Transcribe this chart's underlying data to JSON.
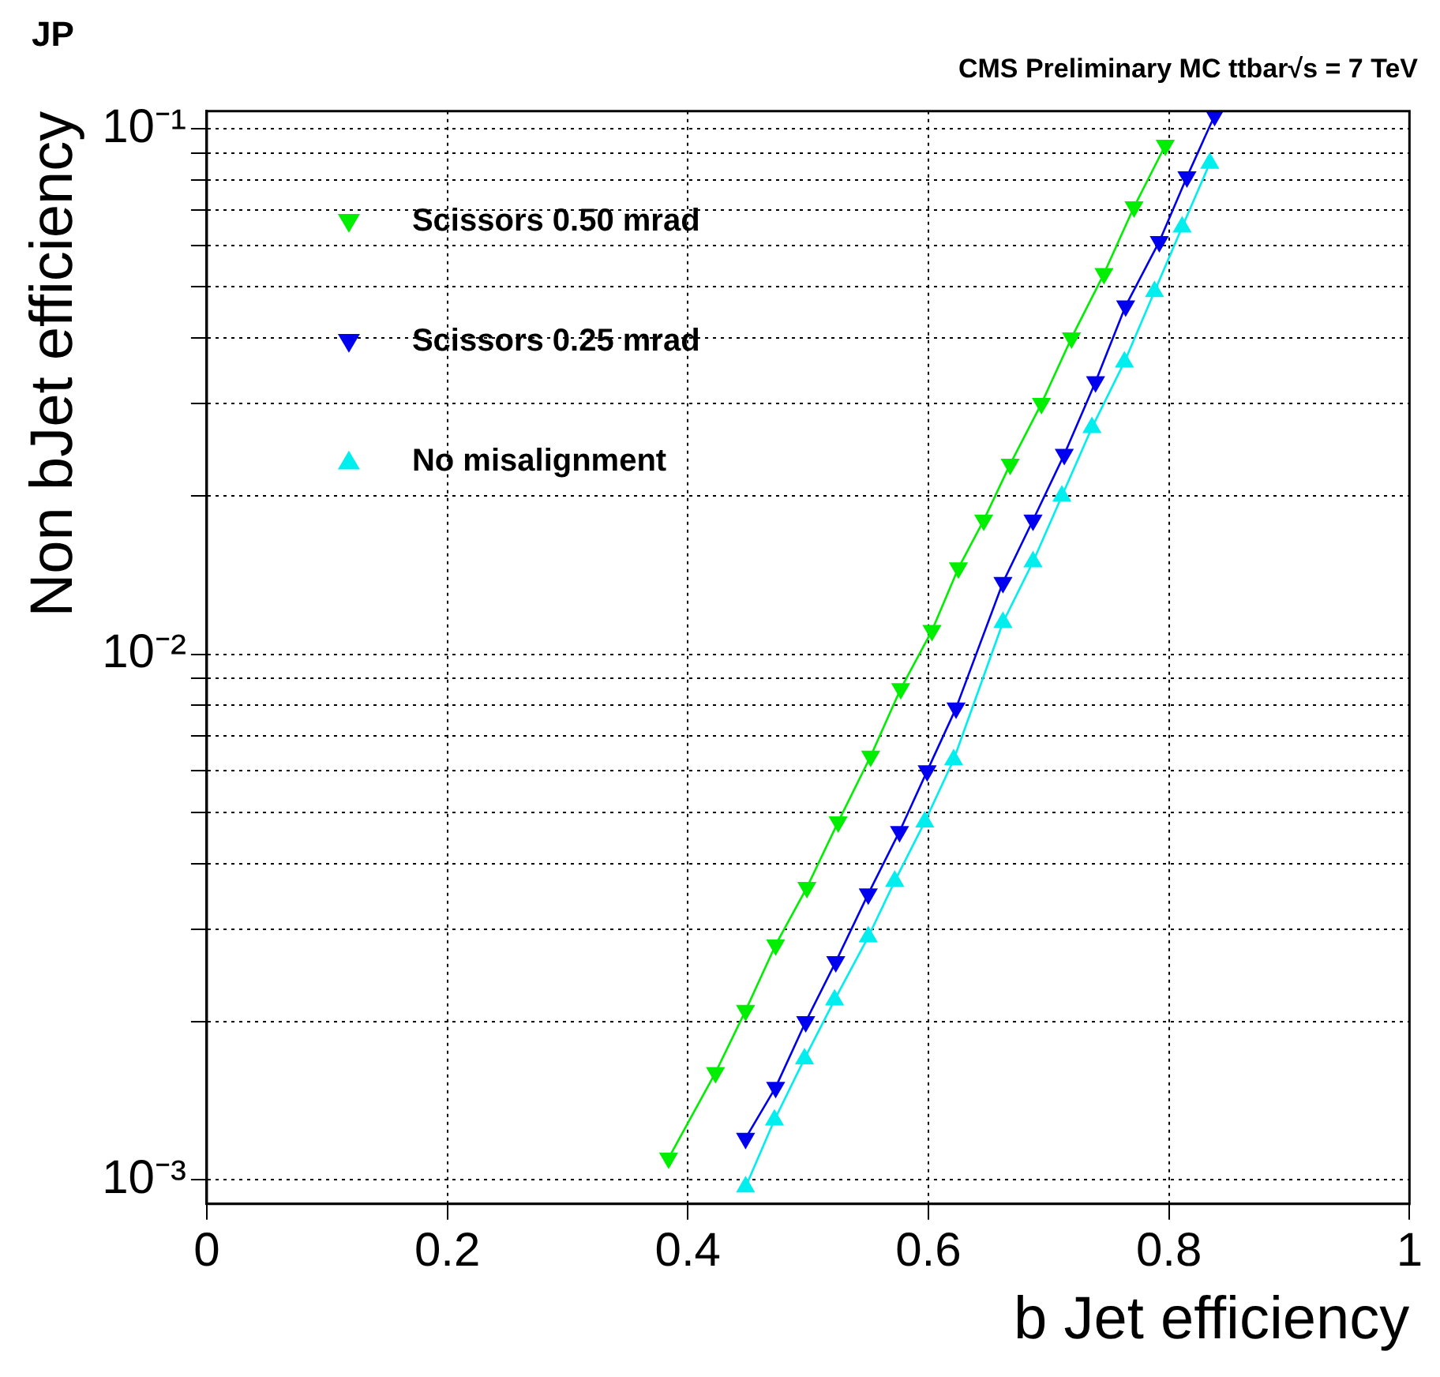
{
  "chart_data": {
    "type": "line",
    "title": "CMS Preliminary MC ttbar√s = 7 TeV",
    "xlabel": "b Jet efficiency",
    "ylabel": "Non bJet efficiency",
    "annotations": [
      "JP"
    ],
    "log": "y",
    "grid": true,
    "legend": "top left",
    "line_style": "solid",
    "xlim": [
      0,
      1
    ],
    "xticks": [
      0,
      0.2,
      0.4,
      0.6,
      0.8,
      1
    ],
    "ylim": [
      0.0009,
      0.108
    ],
    "yticks": [
      {
        "value": 0.001,
        "label": "10⁻³"
      },
      {
        "value": 0.002,
        "label": null
      },
      {
        "value": 0.003,
        "label": null
      },
      {
        "value": 0.004,
        "label": null
      },
      {
        "value": 0.005,
        "label": null
      },
      {
        "value": 0.006,
        "label": null
      },
      {
        "value": 0.007,
        "label": null
      },
      {
        "value": 0.008,
        "label": null
      },
      {
        "value": 0.009,
        "label": null
      },
      {
        "value": 0.01,
        "label": "10⁻²"
      },
      {
        "value": 0.02,
        "label": null
      },
      {
        "value": 0.03,
        "label": null
      },
      {
        "value": 0.04,
        "label": null
      },
      {
        "value": 0.05,
        "label": null
      },
      {
        "value": 0.06,
        "label": null
      },
      {
        "value": 0.07,
        "label": null
      },
      {
        "value": 0.08,
        "label": null
      },
      {
        "value": 0.09,
        "label": null
      },
      {
        "value": 0.1,
        "label": "10⁻¹"
      }
    ],
    "series": [
      {
        "name": "Scissors 0.50 mrad",
        "color": "#00ee00",
        "marker": "triangle-down",
        "x": [
          0.797,
          0.771,
          0.746,
          0.719,
          0.694,
          0.668,
          0.646,
          0.625,
          0.603,
          0.577,
          0.552,
          0.525,
          0.499,
          0.473,
          0.448,
          0.423,
          0.384
        ],
        "values": [
          0.093,
          0.071,
          0.053,
          0.04,
          0.03,
          0.023,
          0.018,
          0.0146,
          0.0111,
          0.0086,
          0.0064,
          0.0048,
          0.0036,
          0.0028,
          0.0021,
          0.0016,
          0.0011
        ]
      },
      {
        "name": "Scissors 0.25 mrad",
        "color": "#0000ee",
        "marker": "triangle-down",
        "x": [
          0.838,
          0.815,
          0.792,
          0.764,
          0.739,
          0.713,
          0.687,
          0.662,
          0.623,
          0.599,
          0.576,
          0.55,
          0.523,
          0.498,
          0.473,
          0.448
        ],
        "values": [
          0.106,
          0.081,
          0.061,
          0.046,
          0.033,
          0.024,
          0.018,
          0.0137,
          0.0079,
          0.006,
          0.0046,
          0.0035,
          0.0026,
          0.002,
          0.0015,
          0.0012
        ]
      },
      {
        "name": "No misalignment",
        "color": "#00eeee",
        "marker": "triangle",
        "x": [
          0.834,
          0.811,
          0.788,
          0.763,
          0.736,
          0.711,
          0.687,
          0.662,
          0.621,
          0.597,
          0.572,
          0.55,
          0.522,
          0.497,
          0.472,
          0.448
        ],
        "values": [
          0.086,
          0.065,
          0.049,
          0.036,
          0.027,
          0.02,
          0.015,
          0.0115,
          0.0063,
          0.0048,
          0.0037,
          0.0029,
          0.0022,
          0.0017,
          0.0013,
          0.00097
        ]
      }
    ]
  }
}
